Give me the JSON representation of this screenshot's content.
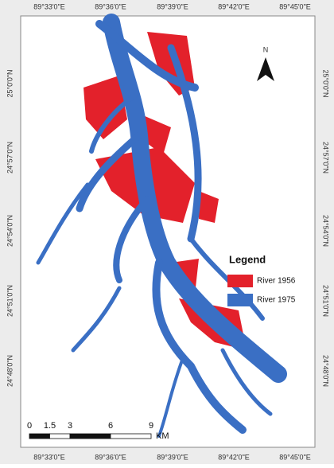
{
  "map": {
    "top_labels": [
      "89°33'0\"E",
      "89°36'0\"E",
      "89°39'0\"E",
      "89°42'0\"E",
      "89°45'0\"E"
    ],
    "bottom_labels": [
      "89°33'0\"E",
      "89°36'0\"E",
      "89°39'0\"E",
      "89°42'0\"E",
      "89°45'0\"E"
    ],
    "left_labels": [
      "25°0'0\"N",
      "24°57'0\"N",
      "24°54'0\"N",
      "24°51'0\"N",
      "24°48'0\"N"
    ],
    "right_labels": [
      "25°0'0\"N",
      "24°57'0\"N",
      "24°54'0\"N",
      "24°51'0\"N",
      "24°48'0\"N"
    ],
    "north": "N",
    "legend": {
      "title": "Legend",
      "items": [
        {
          "label": "River  1956",
          "color": "#e3212b"
        },
        {
          "label": "River 1975",
          "color": "#3a6fc4"
        }
      ]
    },
    "scale_bar": {
      "ticks": [
        0,
        1.5,
        3,
        6,
        9
      ],
      "unit": "KM"
    }
  }
}
